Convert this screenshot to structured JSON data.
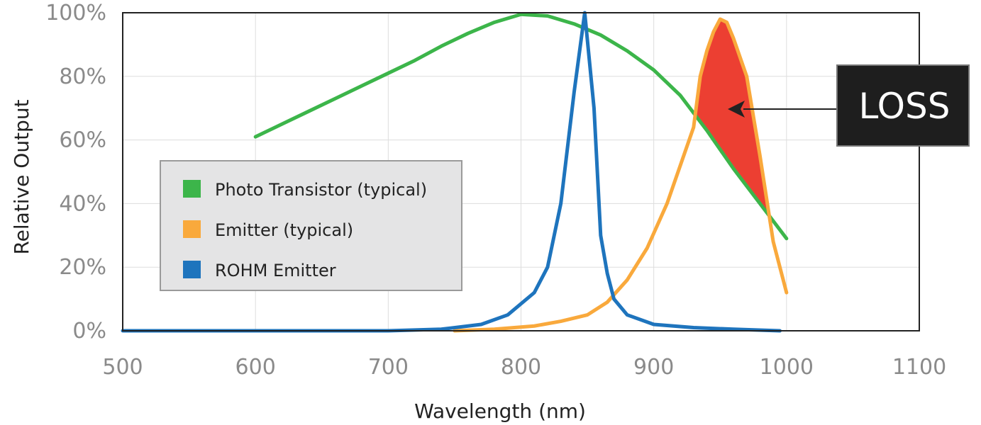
{
  "chart_data": {
    "type": "line",
    "title": "",
    "xlabel": "Wavelength (nm)",
    "ylabel": "Relative Output",
    "xlim": [
      500,
      1100
    ],
    "ylim": [
      0,
      100
    ],
    "x_ticks": [
      500,
      600,
      700,
      800,
      900,
      1000,
      1100
    ],
    "x_tick_labels": [
      "500",
      "600",
      "700",
      "800",
      "900",
      "1000",
      "1100"
    ],
    "y_ticks": [
      0,
      20,
      40,
      60,
      80,
      100
    ],
    "y_tick_labels": [
      "0%",
      "20%",
      "40%",
      "60%",
      "80%",
      "100%"
    ],
    "grid": true,
    "legend_position": "center-left",
    "series": [
      {
        "name": "Photo Transistor (typical)",
        "color": "#3cb54a",
        "x": [
          600,
          620,
          640,
          660,
          680,
          700,
          720,
          740,
          760,
          780,
          800,
          820,
          840,
          860,
          880,
          900,
          920,
          940,
          960,
          980,
          1000
        ],
        "y": [
          61,
          65,
          69,
          73,
          77,
          81,
          85,
          89.5,
          93.5,
          97,
          99.5,
          99,
          96.5,
          93,
          88,
          82,
          74,
          63,
          51,
          40,
          29
        ]
      },
      {
        "name": "Emitter (typical)",
        "color": "#f9a93c",
        "x": [
          750,
          780,
          810,
          830,
          850,
          865,
          880,
          895,
          910,
          920,
          930,
          935,
          940,
          945,
          950,
          955,
          960,
          970,
          980,
          990,
          1000
        ],
        "y": [
          0,
          0.5,
          1.5,
          3,
          5,
          9,
          16,
          26,
          40,
          52,
          64,
          80,
          88,
          94,
          98,
          97,
          92,
          80,
          55,
          28,
          12
        ]
      },
      {
        "name": "ROHM Emitter",
        "color": "#1e74bd",
        "x": [
          500,
          600,
          700,
          740,
          770,
          790,
          810,
          820,
          830,
          840,
          848,
          855,
          860,
          865,
          870,
          880,
          900,
          930,
          960,
          995
        ],
        "y": [
          0,
          0,
          0,
          0.5,
          2,
          5,
          12,
          20,
          40,
          75,
          100,
          70,
          30,
          18,
          10,
          5,
          2,
          1,
          0.5,
          0
        ]
      }
    ],
    "annotations": [
      {
        "text": "LOSS",
        "color": "#ec3f32"
      }
    ]
  },
  "legend": {
    "items": [
      {
        "label": "Photo Transistor (typical)",
        "color": "#3cb54a"
      },
      {
        "label": "Emitter (typical)",
        "color": "#f9a93c"
      },
      {
        "label": "ROHM Emitter",
        "color": "#1e74bd"
      }
    ]
  },
  "annotation": {
    "label": "LOSS"
  },
  "colors": {
    "photo_transistor": "#3cb54a",
    "emitter": "#f9a93c",
    "rohm": "#1e74bd",
    "loss_fill": "#ec3f32",
    "grid": "#dddddd",
    "frame": "#222222",
    "label_box": "#1e1e1e"
  }
}
